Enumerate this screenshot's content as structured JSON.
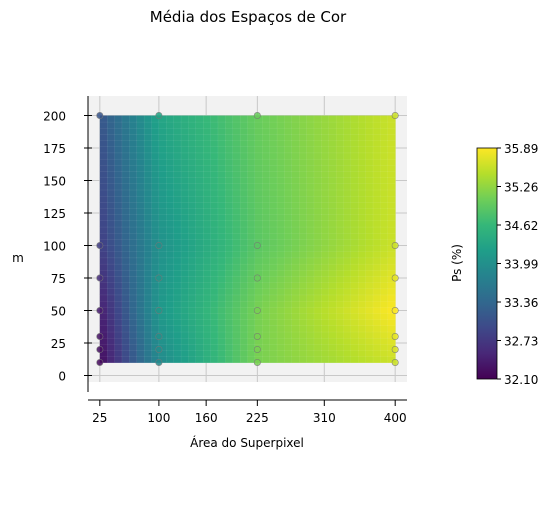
{
  "chart_data": {
    "type": "heatmap",
    "title": "Média dos Espaços de Cor",
    "xlabel": "Área do Superpixel",
    "ylabel": "m",
    "x_ticks": [
      25,
      100,
      160,
      225,
      310,
      400
    ],
    "y_ticks": [
      0,
      25,
      50,
      75,
      100,
      125,
      150,
      175,
      200
    ],
    "xlim": [
      10,
      415
    ],
    "ylim": [
      -5,
      215
    ],
    "surface_x_range": [
      25,
      400
    ],
    "surface_y_range": [
      10,
      200
    ],
    "grid": true,
    "colormap": "viridis",
    "colorbar": {
      "label": "Ps (%)",
      "min": 32.1,
      "max": 35.89,
      "ticks": [
        "32.10",
        "32.73",
        "33.36",
        "33.99",
        "34.62",
        "35.26",
        "35.89"
      ]
    },
    "sample_points": {
      "x": [
        25,
        100,
        225,
        400
      ],
      "y": [
        10,
        20,
        30,
        50,
        75,
        100,
        200
      ]
    },
    "surface_grid": {
      "x": [
        25,
        100,
        225,
        400
      ],
      "y": [
        10,
        50,
        100,
        200
      ],
      "z": [
        [
          32.2,
          33.9,
          35.1,
          35.6
        ],
        [
          32.4,
          34.1,
          35.1,
          35.89
        ],
        [
          32.8,
          34.0,
          34.9,
          35.6
        ],
        [
          33.1,
          34.3,
          35.0,
          35.6
        ]
      ]
    }
  }
}
